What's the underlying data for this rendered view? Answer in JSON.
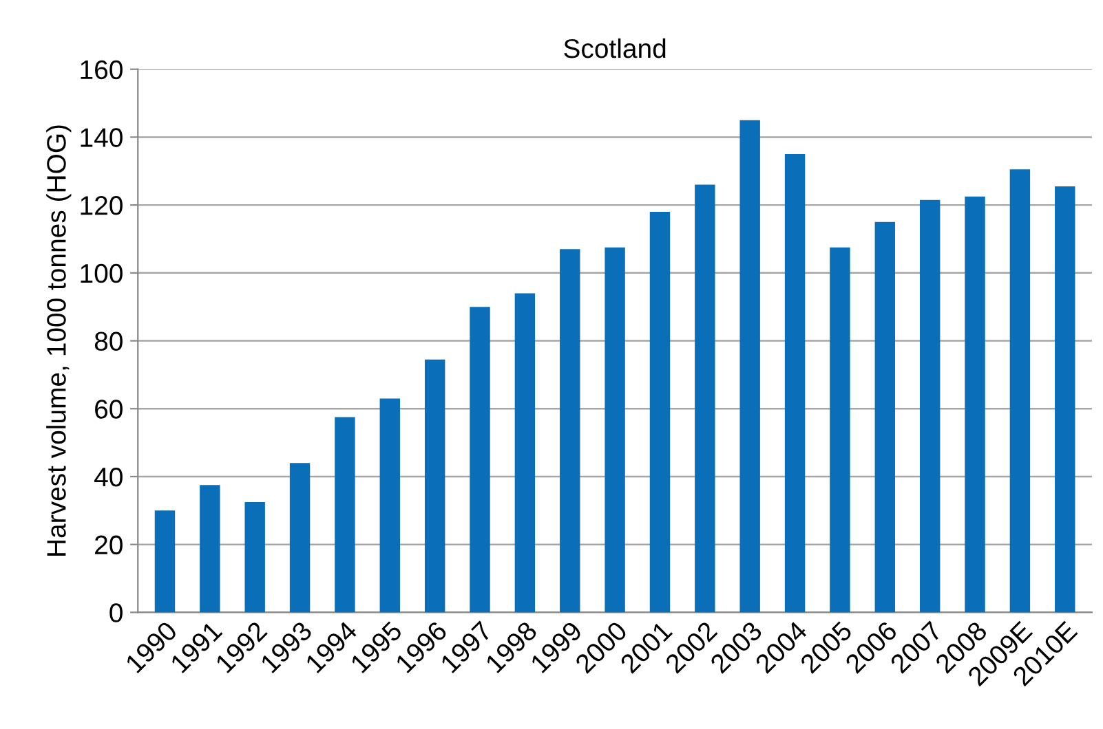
{
  "chart_data": {
    "type": "bar",
    "title": "Scotland",
    "ylabel": "Harvest volume, 1000 tonnes (HOG)",
    "categories": [
      "1990",
      "1991",
      "1992",
      "1993",
      "1994",
      "1995",
      "1996",
      "1997",
      "1998",
      "1999",
      "2000",
      "2001",
      "2002",
      "2003",
      "2004",
      "2005",
      "2006",
      "2007",
      "2008",
      "2009E",
      "2010E"
    ],
    "values": [
      30,
      37.5,
      32.5,
      44,
      57.5,
      63,
      74.5,
      90,
      94,
      107,
      107.5,
      118,
      126,
      145,
      135,
      107.5,
      115,
      121.5,
      122.5,
      130.5,
      125.5
    ],
    "color": "#0a6fb8",
    "ylim": [
      0,
      160
    ],
    "yticks": [
      0,
      20,
      40,
      60,
      80,
      100,
      120,
      140,
      160
    ],
    "grid": "y",
    "legend": false
  }
}
